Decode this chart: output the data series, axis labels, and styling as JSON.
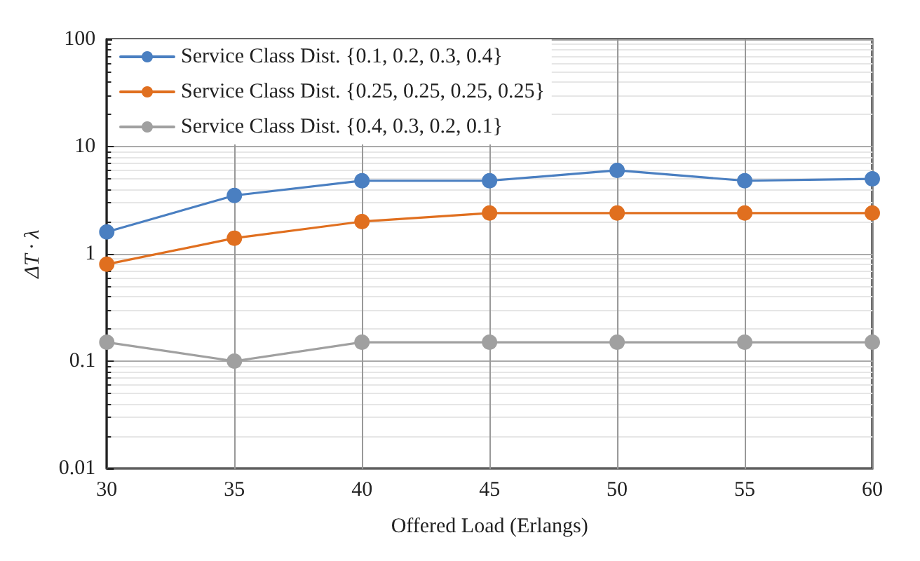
{
  "chart_data": {
    "type": "line",
    "xlabel": "Offered Load (Erlangs)",
    "ylabel": "ΔT · λ",
    "x": [
      30,
      35,
      40,
      45,
      50,
      55,
      60
    ],
    "series": [
      {
        "name": "Service Class Dist. {0.1, 0.2, 0.3, 0.4}",
        "color": "#4a7fc1",
        "values": [
          1.6,
          3.5,
          4.8,
          4.8,
          6,
          4.8,
          5
        ]
      },
      {
        "name": "Service Class Dist. {0.25, 0.25, 0.25, 0.25}",
        "color": "#e06f1f",
        "values": [
          0.8,
          1.4,
          2,
          2.4,
          2.4,
          2.4,
          2.4
        ]
      },
      {
        "name": "Service Class Dist. {0.4, 0.3, 0.2, 0.1}",
        "color": "#a0a0a0",
        "values": [
          0.15,
          0.1,
          0.15,
          0.15,
          0.15,
          0.15,
          0.15
        ]
      }
    ],
    "xlim": [
      30,
      60
    ],
    "xticks": [
      30,
      35,
      40,
      45,
      50,
      55,
      60
    ],
    "ylim": [
      0.01,
      100
    ],
    "yticks": [
      0.01,
      0.1,
      1,
      10,
      100
    ],
    "log": "y",
    "grid": true,
    "legend": "top left",
    "marker": "circle",
    "line_style": "solid"
  }
}
